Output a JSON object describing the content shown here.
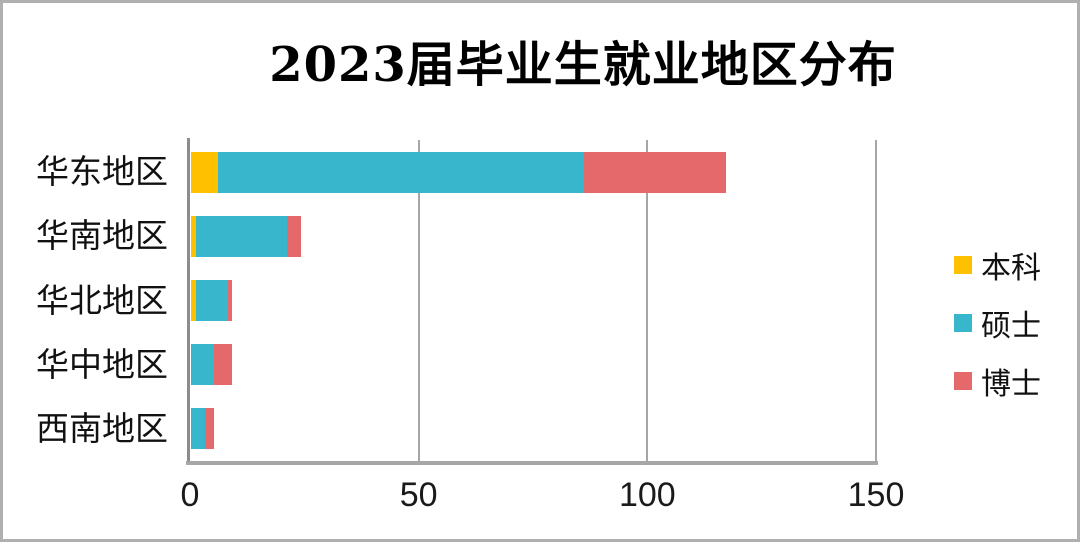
{
  "title": "2023届毕业生就业地区分布",
  "chart_data": {
    "type": "bar",
    "orientation": "horizontal",
    "stacked": true,
    "title": "2023届毕业生就业地区分布",
    "categories": [
      "华东地区",
      "华南地区",
      "华北地区",
      "华中地区",
      "西南地区"
    ],
    "series": [
      {
        "name": "本科",
        "color": "#FFC000",
        "values": [
          6,
          1,
          1,
          0,
          0
        ]
      },
      {
        "name": "硕士",
        "color": "#38B6CC",
        "values": [
          80,
          20,
          7,
          5,
          3
        ]
      },
      {
        "name": "博士",
        "color": "#E5696B",
        "values": [
          31,
          3,
          1,
          4,
          2
        ]
      }
    ],
    "totals": [
      117,
      24,
      9,
      9,
      5
    ],
    "xlabel": "",
    "ylabel": "",
    "xlim": [
      0,
      150
    ],
    "xticks": [
      0,
      50,
      100,
      150
    ],
    "legend_position": "right",
    "grid": "vertical-gridlines",
    "colors": {
      "gridline": "#A6A6A6",
      "axis": "#8C8C8C",
      "text": "#000000",
      "background": "#FFFFFF",
      "frame_border": "#B0B0B0"
    }
  }
}
